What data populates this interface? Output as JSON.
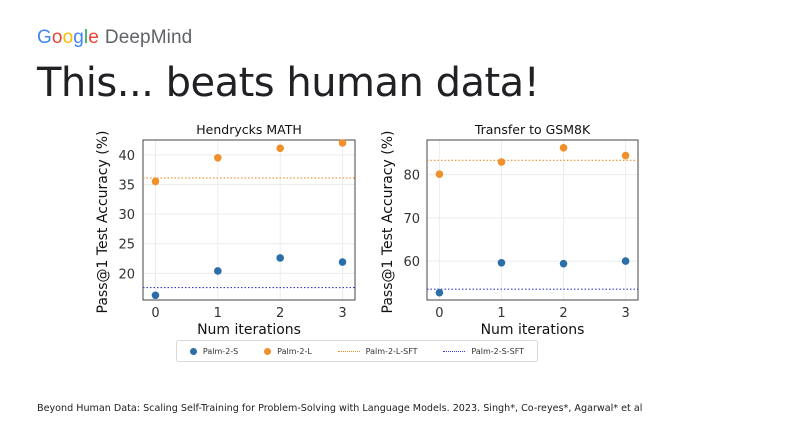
{
  "brand": {
    "google": "Google",
    "deepmind": "DeepMind"
  },
  "headline": "This... beats human data!",
  "colors": {
    "palm_2_s": "#2b6ea8",
    "palm_2_l": "#f0902a",
    "google_blue": "#4285F4",
    "google_red": "#EA4335",
    "google_yellow": "#FBBC05",
    "google_green": "#34A853"
  },
  "legend": [
    {
      "label": "Palm-2-S",
      "kind": "dot",
      "color": "#2b6ea8"
    },
    {
      "label": "Palm-2-L",
      "kind": "dot",
      "color": "#f0902a"
    },
    {
      "label": "Palm-2-L-SFT",
      "kind": "dotted-line",
      "color": "#f0902a"
    },
    {
      "label": "Palm-2-S-SFT",
      "kind": "dotted-line",
      "color": "#3b3bd6"
    }
  ],
  "chart_data": [
    {
      "type": "scatter",
      "title": "Hendrycks MATH",
      "xlabel": "Num iterations",
      "ylabel": "Pass@1 Test Accuracy (%)",
      "x_ticks": [
        0,
        1,
        2,
        3
      ],
      "y_ticks": [
        20,
        25,
        30,
        35,
        40
      ],
      "xlim": [
        -0.2,
        3.2
      ],
      "ylim": [
        15.5,
        42.5
      ],
      "grid": true,
      "series": [
        {
          "name": "Palm-2-S",
          "x": [
            0,
            1,
            2,
            3
          ],
          "y": [
            16.3,
            20.4,
            22.6,
            21.9
          ],
          "color": "#2b6ea8"
        },
        {
          "name": "Palm-2-L",
          "x": [
            0,
            1,
            2,
            3
          ],
          "y": [
            35.5,
            39.5,
            41.1,
            42.0
          ],
          "color": "#f0902a"
        }
      ],
      "reference_lines": [
        {
          "name": "Palm-2-L-SFT",
          "y": 36.1,
          "color": "#f0902a"
        },
        {
          "name": "Palm-2-S-SFT",
          "y": 17.6,
          "color": "#3b3bd6"
        }
      ]
    },
    {
      "type": "scatter",
      "title": "Transfer to GSM8K",
      "xlabel": "Num iterations",
      "ylabel": "Pass@1 Test Accuracy (%)",
      "x_ticks": [
        0,
        1,
        2,
        3
      ],
      "y_ticks": [
        60,
        70,
        80
      ],
      "xlim": [
        -0.2,
        3.2
      ],
      "ylim": [
        51.0,
        88.0
      ],
      "grid": true,
      "series": [
        {
          "name": "Palm-2-S",
          "x": [
            0,
            1,
            2,
            3
          ],
          "y": [
            52.7,
            59.6,
            59.4,
            60.0
          ],
          "color": "#2b6ea8"
        },
        {
          "name": "Palm-2-L",
          "x": [
            0,
            1,
            2,
            3
          ],
          "y": [
            80.1,
            82.9,
            86.2,
            84.4
          ],
          "color": "#f0902a"
        }
      ],
      "reference_lines": [
        {
          "name": "Palm-2-L-SFT",
          "y": 83.3,
          "color": "#f0902a"
        },
        {
          "name": "Palm-2-S-SFT",
          "y": 53.5,
          "color": "#3b3bd6"
        }
      ]
    }
  ],
  "footer": "Beyond Human Data: Scaling Self-Training for Problem-Solving with Language Models. 2023. Singh*, Co-reyes*, Agarwal* et al"
}
